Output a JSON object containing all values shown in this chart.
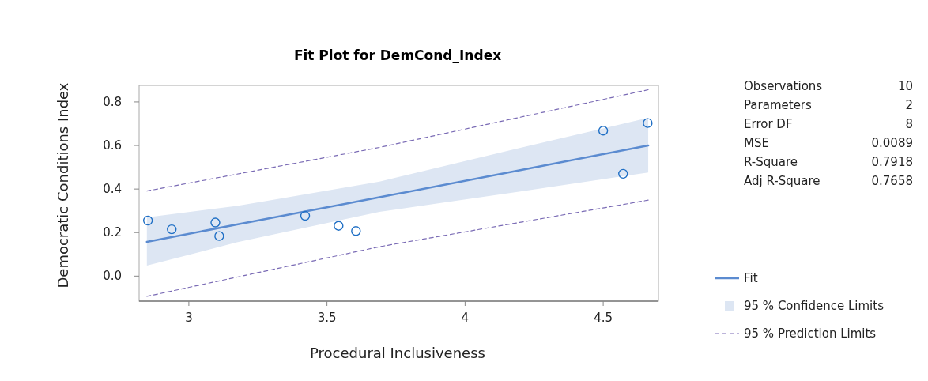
{
  "chart_data": {
    "type": "scatter",
    "title": "Fit Plot for DemCond_Index",
    "xlabel": "Procedural Inclusiveness",
    "ylabel": "Democratic Conditions Index",
    "xlim": [
      2.82,
      4.7
    ],
    "ylim": [
      -0.115,
      0.876
    ],
    "xticks": [
      3.0,
      {
        "value": 3.5,
        "label": "3.5"
      },
      4.0,
      4.5
    ],
    "yticks": [
      {
        "value": 0,
        "label": "0.0"
      },
      0.2,
      0.4,
      0.6,
      0.8
    ],
    "grid": false,
    "legend": "right",
    "marker": "circle",
    "series": [
      {
        "type": "line",
        "name": "95 % Prediction Limits",
        "color": "#7a6bb5",
        "line_style": "dashed",
        "marker": "none",
        "x": [
          2.848,
          3.69,
          4.663
        ],
        "values": [
          0.391,
          0.591,
          0.856
        ]
      },
      {
        "type": "line",
        "color": "#7a6bb5",
        "line_style": "dashed",
        "marker": "none",
        "x": [
          2.848,
          3.69,
          4.663
        ],
        "values": [
          -0.093,
          0.135,
          0.349
        ]
      },
      {
        "type": "line",
        "name": "Fit",
        "color": "#5b8bd0",
        "line_style": "solid",
        "marker": "none",
        "x": [
          2.848,
          3.174,
          3.69,
          4.2,
          4.663
        ],
        "values": [
          0.157,
          0.237,
          0.362,
          0.487,
          0.6
        ],
        "lower": [
          0.048,
          0.155,
          0.295,
          0.389,
          0.476
        ],
        "upper": [
          0.27,
          0.322,
          0.434,
          0.589,
          0.727
        ]
      },
      {
        "color": "#1f6fc5",
        "x": [
          2.852,
          2.938,
          3.096,
          3.11,
          3.421,
          3.542,
          3.605,
          4.5,
          4.572,
          4.661
        ],
        "values": [
          0.255,
          0.215,
          0.246,
          0.184,
          0.277,
          0.231,
          0.207,
          0.668,
          0.47,
          0.703
        ]
      }
    ],
    "annotations": [
      "Observations",
      "10",
      "Parameters",
      "2",
      "Error DF",
      "8",
      "MSE",
      "0.0089",
      "R-Square",
      "0.7918",
      "Adj R-Square",
      "0.7658",
      "95 % Confidence Limits"
    ]
  }
}
